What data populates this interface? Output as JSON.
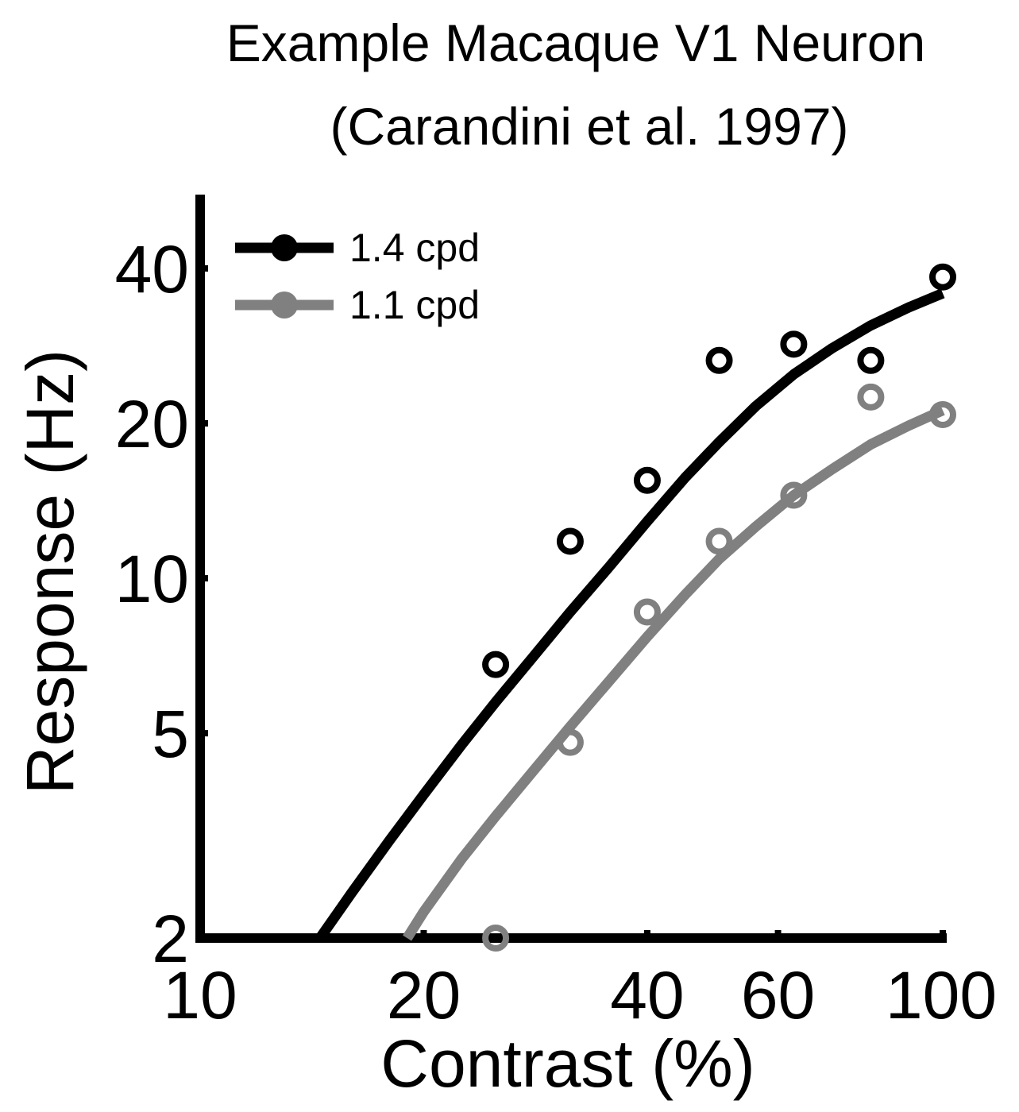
{
  "chart_data": {
    "type": "scatter",
    "title": "Example Macaque V1 Neuron",
    "subtitle": "(Carandini et al. 1997)",
    "xlabel": "Contrast (%)",
    "ylabel": "Response (Hz)",
    "xscale": "log",
    "yscale": "log",
    "xlim": [
      10,
      100
    ],
    "ylim": [
      2,
      50
    ],
    "xticks": [
      10,
      20,
      40,
      60,
      100
    ],
    "yticks": [
      2,
      5,
      10,
      20,
      40
    ],
    "xtick_labels": [
      "10",
      "20",
      "40",
      "60",
      "100"
    ],
    "ytick_labels": [
      "2",
      "5",
      "10",
      "20",
      "40"
    ],
    "grid": false,
    "legend_position": "top-left",
    "series": [
      {
        "name": "1.4 cpd",
        "color": "#000000",
        "points": {
          "x": [
            25,
            31.5,
            40,
            50,
            63,
            80,
            100
          ],
          "y": [
            6.8,
            11.8,
            15.5,
            26.5,
            28.5,
            26.5,
            38.5
          ]
        },
        "fit": {
          "x": [
            14.5,
            16,
            18,
            20,
            22.5,
            25,
            28,
            31.5,
            35.5,
            40,
            45,
            50,
            56,
            63,
            71,
            80,
            90,
            100
          ],
          "y": [
            2.0,
            2.45,
            3.1,
            3.8,
            4.75,
            5.75,
            7.0,
            8.6,
            10.5,
            12.9,
            15.7,
            18.4,
            21.6,
            24.9,
            28.0,
            31.0,
            33.6,
            35.8
          ]
        }
      },
      {
        "name": "1.1 cpd",
        "color": "#808080",
        "points": {
          "x": [
            25,
            31.5,
            40,
            50,
            63,
            80,
            100
          ],
          "y": [
            2.0,
            4.8,
            8.6,
            11.8,
            14.5,
            22.5,
            20.8
          ]
        },
        "fit": {
          "x": [
            19,
            20,
            22.5,
            25,
            28,
            31.5,
            35.5,
            40,
            45,
            50,
            56,
            63,
            71,
            80,
            90,
            100
          ],
          "y": [
            2.0,
            2.25,
            2.85,
            3.45,
            4.2,
            5.15,
            6.3,
            7.7,
            9.3,
            10.9,
            12.6,
            14.5,
            16.3,
            18.2,
            19.8,
            21.2
          ]
        }
      }
    ]
  }
}
